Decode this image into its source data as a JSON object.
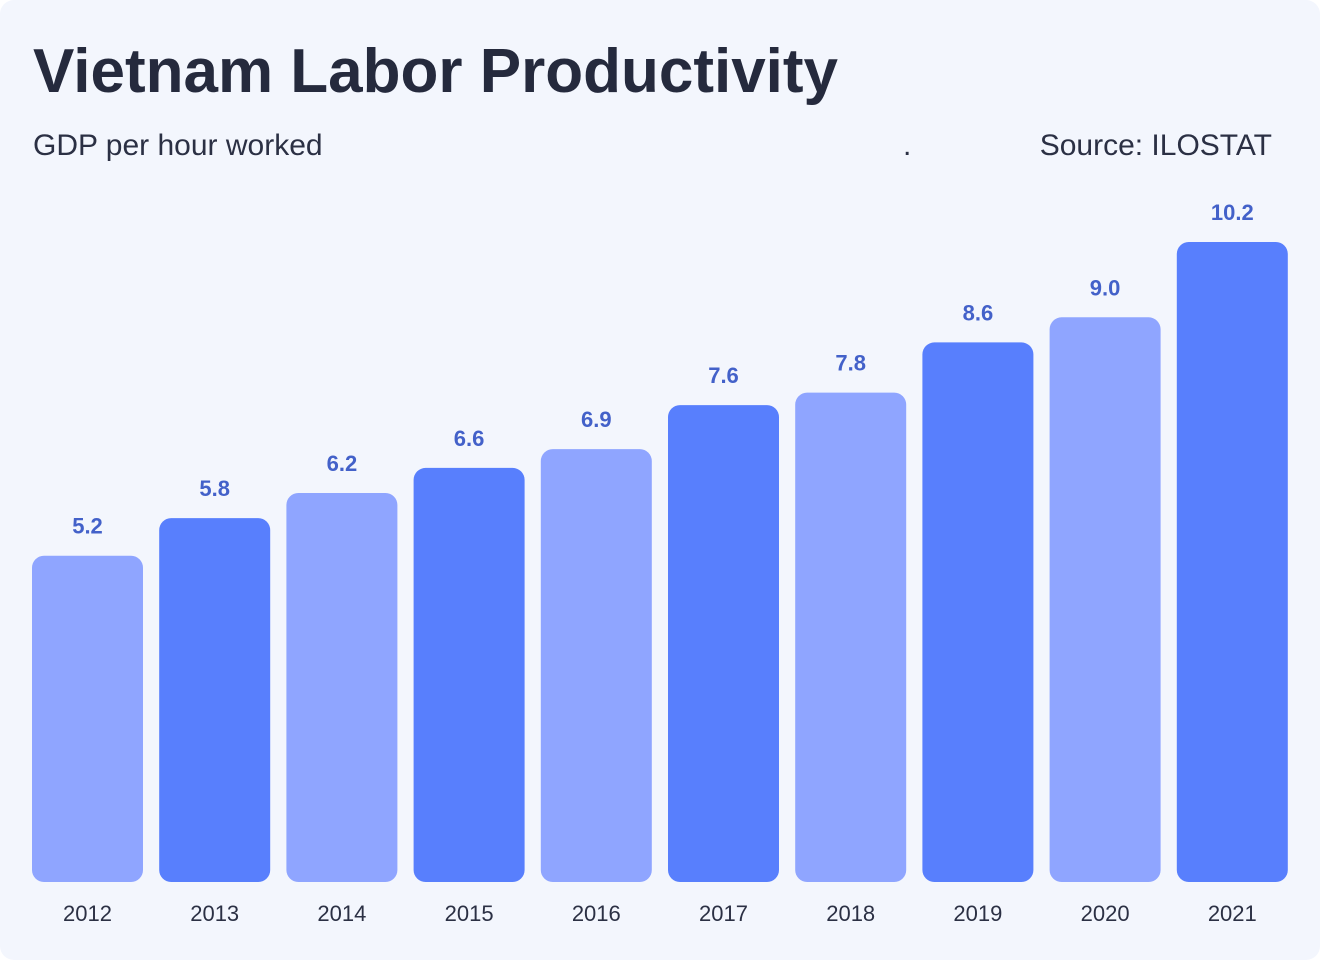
{
  "header": {
    "title": "Vietnam Labor Productivity",
    "subtitle": "GDP per hour worked",
    "separator": ".",
    "source": "Source: ILOSTAT"
  },
  "colors": {
    "background": "#f3f6fd",
    "bar_light": "#8fa5ff",
    "bar_dark": "#587ffd",
    "value_label": "#4361c9",
    "text": "#2b3044"
  },
  "chart_data": {
    "type": "bar",
    "title": "Vietnam Labor Productivity",
    "subtitle": "GDP per hour worked",
    "xlabel": "",
    "ylabel": "",
    "categories": [
      "2012",
      "2013",
      "2014",
      "2015",
      "2016",
      "2017",
      "2018",
      "2019",
      "2020",
      "2021"
    ],
    "values": [
      5.2,
      5.8,
      6.2,
      6.6,
      6.9,
      7.6,
      7.8,
      8.6,
      9.0,
      10.2
    ],
    "value_labels": [
      "5.2",
      "5.8",
      "6.2",
      "6.6",
      "6.9",
      "7.6",
      "7.8",
      "8.6",
      "9.0",
      "10.2"
    ],
    "bar_shades": [
      "light",
      "dark",
      "light",
      "dark",
      "light",
      "dark",
      "light",
      "dark",
      "light",
      "dark"
    ],
    "ylim": [
      0,
      10.2
    ],
    "grid": false,
    "legend": "none"
  }
}
